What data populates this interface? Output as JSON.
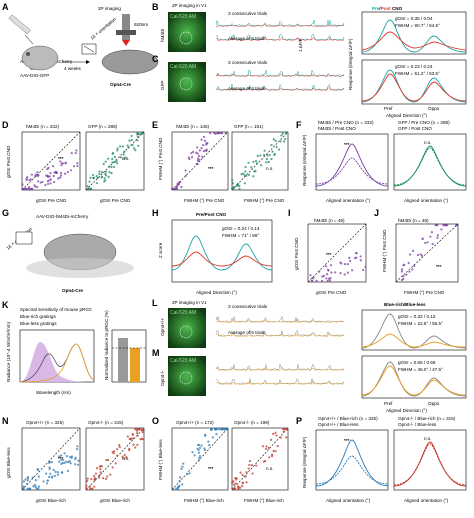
{
  "colors": {
    "hm4di": "#7b3fa3",
    "gfp": "#1e8a5c",
    "pre": "#1aa3a3",
    "post": "#e0392b",
    "blue_rich": "#2a7ab8",
    "blue_less": "#e8a020",
    "opn4_ko": "#c0392b",
    "micro_green": "#1d5c1d"
  },
  "panels": {
    "A": {
      "letter": "A",
      "virus": "AAV-DIO-hM4Di-mCherry",
      "or": "or",
      "virus2": "AAV-DIO-GFP",
      "weeks": "4 weeks",
      "orient": "16 × orientation",
      "laser": "920nm",
      "mouse": "Opn4-Cre",
      "imaging": "2P imaging"
    },
    "B": {
      "letter": "B",
      "title": "2P imaging in V1",
      "cal": "Cal-520 AM",
      "side": "hM4Di",
      "trials": "3 consecutive trials",
      "avg": "Average of 6 trials",
      "scale": "1 ΔF/F",
      "legend_pre": "Pre",
      "legend_post": "Post",
      "legend_cno": "CNO",
      "gosi": "gOSI = 0.35 / 0.04",
      "fwhm": "FWHM = 90.7° / 64.6°",
      "ylabel": "Response (integral ΔF/F)"
    },
    "C": {
      "letter": "C",
      "cal": "Cal-520 AM",
      "side": "GFP",
      "trials": "3 consecutive trials",
      "avg": "Average of 6 trials",
      "gosi": "gOSI = 0.23 / 0.24",
      "fwhm": "FWHM = 51.2° / 53.5°",
      "xl1": "Pref",
      "xl2": "Oppo",
      "xlabel": "Aligned Direction (°)"
    },
    "D": {
      "letter": "D",
      "left": "hM4Di (n = 232)",
      "right": "GFP (n = 288)",
      "ylabel": "gOSI Post CNO",
      "xlabel": "gOSI Pre CNO",
      "sig": "***",
      "ns": "n.s."
    },
    "E": {
      "letter": "E",
      "left": "hM4Di (n = 145)",
      "right": "GFP (n = 191)",
      "ylabel": "FWHM (°) Post CNO",
      "xlabel": "FWHM (°) Pre CNO",
      "sig": "***",
      "ns": "n.s."
    },
    "F": {
      "letter": "F",
      "l1": "hM4Di / Pre CNO (n = 232)",
      "l2": "hM4Di / Post CNO",
      "l3": "GFP / Pre CNO (n = 288)",
      "l4": "GFP / Post CNO",
      "ylabel": "Response (integral ΔF/F)",
      "xlabel": "Aligned orientation (°)",
      "sig": "***",
      "ns": "n.s."
    },
    "G": {
      "letter": "G",
      "virus": "AAV-DIO-hM4Di-mCherry",
      "orient": "16 × orientation",
      "mouse": "Opn4-Cre"
    },
    "H": {
      "letter": "H",
      "legend": "Pre/Post CNO",
      "gosi": "gOSI = 0.24 / 0.14",
      "fwhm": "FWHM = 71° / 86°",
      "ylabel": "Z score",
      "xlabel": "Aligned Direction (°)"
    },
    "I": {
      "letter": "I",
      "title": "hM4Di (n = 49)",
      "ylabel": "gOSI Post CNO",
      "xlabel": "gOSI Pre CNO",
      "sig": "***"
    },
    "J": {
      "letter": "J",
      "title": "hM4Di (n = 49)",
      "ylabel": "FWHM (°) Post CNO",
      "xlabel": "FWHM (°) Pre CNO",
      "sig": "***"
    },
    "K": {
      "letter": "K",
      "l1": "Spectral sensitivity of mouse pRGC",
      "l2": "Blue-rich gratings",
      "l3": "Blue-less gratings",
      "ylabel": "Radiance (10^-4 W/sr/m²/nm)",
      "xlabel": "Wavelength (nm)",
      "ylabel2": "Normalized radiance to pRGC (%)"
    },
    "L": {
      "letter": "L",
      "title": "2P imaging in V1",
      "cal": "Cal-520 AM",
      "side": "Opn4+/+",
      "trials": "3 consecutive trials",
      "legend": "Blue-rich/Blue-less",
      "avg": "Average of 6 trials",
      "gosi": "gOSI = 0.32 / 0.12",
      "fwhm": "FWHM = 22.8° / 55.5°"
    },
    "M": {
      "letter": "M",
      "cal": "Cal-520 AM",
      "side": "Opn4-/-",
      "gosi": "gOSI = 0.65 / 0.68",
      "fwhm": "FWHM = 45.0° / 47.5°",
      "xl1": "Pref",
      "xl2": "Oppo",
      "xlabel": "Aligned Direction (°)"
    },
    "N": {
      "letter": "N",
      "left": "Opn4+/+ (n = 326)",
      "right": "Opn4-/- (n = 315)",
      "ylabel": "gOSI Blue-less",
      "xlabel": "gOSI Blue-rich",
      "sig": "***",
      "ns": "n.s."
    },
    "O": {
      "letter": "O",
      "left": "Opn4+/+ (n = 172)",
      "right": "Opn4-/- (n = 199)",
      "ylabel": "FWHM (°) Blue-less",
      "xlabel": "FWHM (°) Blue-rich",
      "sig": "***",
      "ns": "n.s."
    },
    "P": {
      "letter": "P",
      "l1": "Opn4+/+ / Blue-rich (n = 326)",
      "l2": "Opn4+/+ / Blue-less",
      "l3": "Opn4-/- / Blue-rich (n = 315)",
      "l4": "Opn4-/- / Blue-less",
      "ylabel": "Response (integral ΔF/F)",
      "xlabel": "Aligned orientation (°)",
      "sig": "***",
      "ns": "n.s."
    }
  },
  "ticks": {
    "zero": "0",
    "half": "0.5",
    "one": "1",
    "t90": "90",
    "t180": "180",
    "tm90": "-90",
    "t60": "60",
    "t120": "120",
    "t400": "400",
    "t500": "500",
    "t600": "600",
    "t700": "700",
    "t50": "50",
    "t100": "100"
  }
}
